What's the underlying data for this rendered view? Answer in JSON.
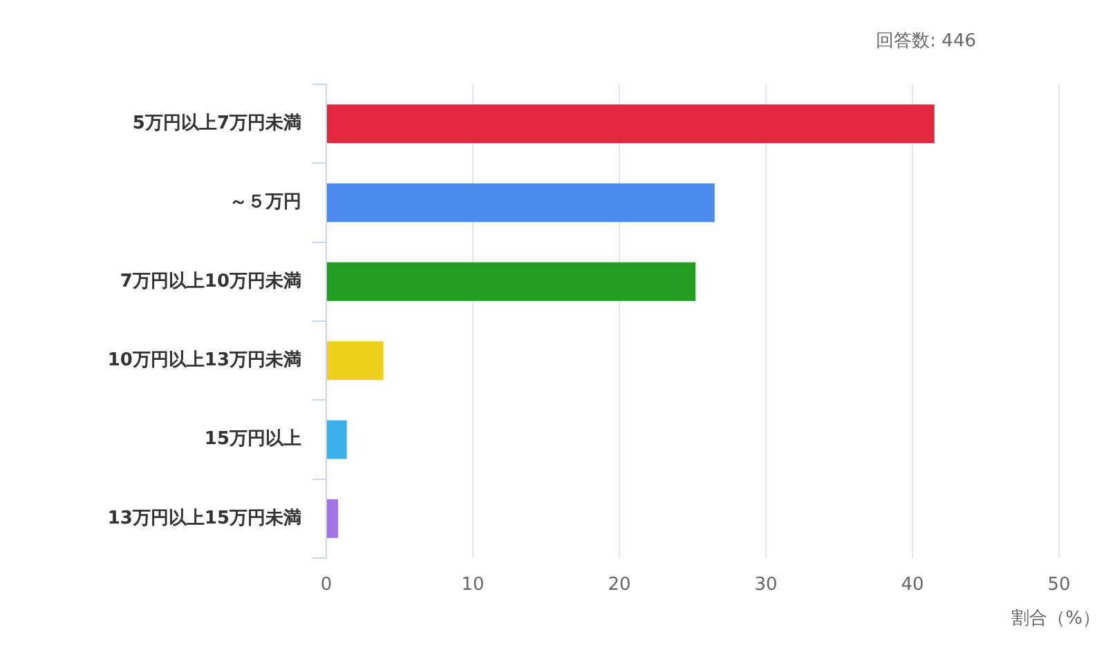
{
  "chart_data": {
    "type": "bar",
    "orientation": "horizontal",
    "categories": [
      "5万円以上7万円未満",
      "～５万円",
      "7万円以上10万円未満",
      "10万円以上13万円未満",
      "15万円以上",
      "13万円以上15万円未満"
    ],
    "values": [
      41.5,
      26.5,
      25.2,
      3.9,
      1.4,
      0.8
    ],
    "colors": [
      "#e5263f",
      "#4a8bec",
      "#259d22",
      "#efd01b",
      "#3bb0ea",
      "#a173e5"
    ],
    "xlabel": "割合（%）",
    "xlim": [
      0,
      50
    ],
    "xticks": [
      0,
      10,
      20,
      30,
      40,
      50
    ],
    "grid": "x",
    "annotations": [
      "回答数: 446"
    ]
  }
}
